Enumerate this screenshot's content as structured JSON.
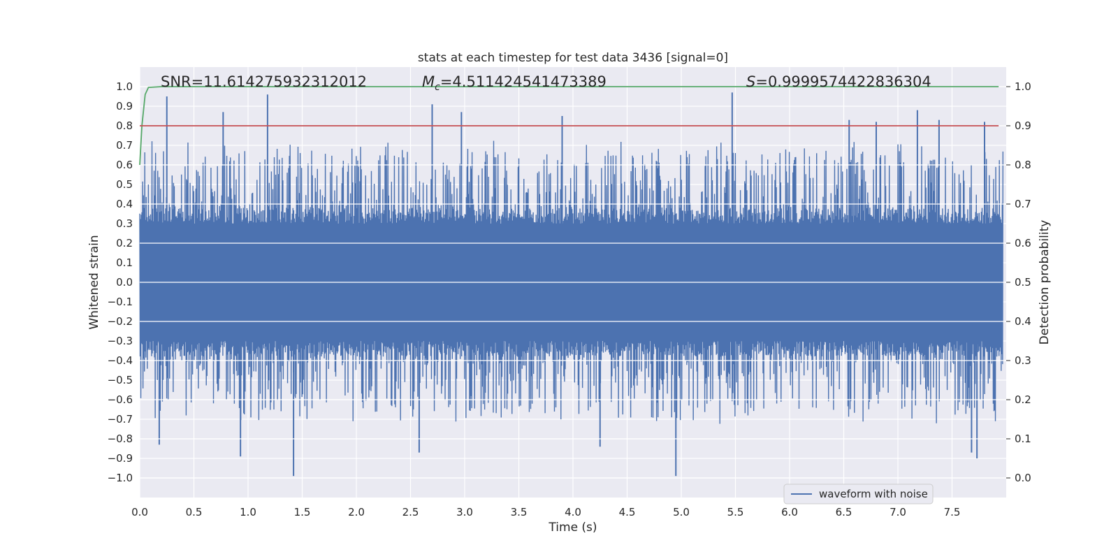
{
  "chart_data": {
    "type": "line",
    "title": "stats at each timestep for test data 3436 [signal=0]",
    "xlabel": "Time (s)",
    "ylabel_left": "Whitened strain",
    "ylabel_right": "Detection probability",
    "xlim": [
      0.0,
      8.0
    ],
    "ylim_left": [
      -1.1,
      1.1
    ],
    "ylim_right": [
      -0.05,
      1.05
    ],
    "x_ticks": [
      "0.0",
      "0.5",
      "1.0",
      "1.5",
      "2.0",
      "2.5",
      "3.0",
      "3.5",
      "4.0",
      "4.5",
      "5.0",
      "5.5",
      "6.0",
      "6.5",
      "7.0",
      "7.5"
    ],
    "y_ticks_left": [
      "1.0",
      "0.9",
      "0.8",
      "0.7",
      "0.6",
      "0.5",
      "0.4",
      "0.3",
      "0.2",
      "0.1",
      "0.0",
      "−0.1",
      "−0.2",
      "−0.3",
      "−0.4",
      "−0.5",
      "−0.6",
      "−0.7",
      "−0.8",
      "−0.9",
      "−1.0"
    ],
    "y_ticks_right": [
      "1.0",
      "0.9",
      "0.8",
      "0.7",
      "0.6",
      "0.5",
      "0.4",
      "0.3",
      "0.2",
      "0.1",
      "0.0"
    ],
    "annotations": {
      "snr": "SNR=11.614275932312012",
      "mc_symbol": "M",
      "mc_sub": "c",
      "mc_value": "=4.511424541473389",
      "s_symbol": "S",
      "s_value": "=0.9999574422836304"
    },
    "legend": {
      "label": "waveform with noise",
      "position": "lower-right"
    },
    "series": [
      {
        "name": "waveform with noise",
        "axis": "left",
        "color": "#4c72b0",
        "description": "dense noisy whitened strain, bulk within about ±0.3 with spikes up to ±1.0",
        "bulk_amplitude": 0.3,
        "spikes": [
          {
            "x": 0.25,
            "y": 0.95
          },
          {
            "x": 0.77,
            "y": 0.87
          },
          {
            "x": 1.18,
            "y": 0.96
          },
          {
            "x": 2.7,
            "y": 0.91
          },
          {
            "x": 2.97,
            "y": 0.87
          },
          {
            "x": 3.9,
            "y": 0.85
          },
          {
            "x": 5.47,
            "y": 0.97
          },
          {
            "x": 6.55,
            "y": 0.83
          },
          {
            "x": 6.8,
            "y": 0.82
          },
          {
            "x": 7.18,
            "y": 0.88
          },
          {
            "x": 7.38,
            "y": 0.83
          },
          {
            "x": 7.8,
            "y": 0.82
          },
          {
            "x": 0.93,
            "y": -0.89
          },
          {
            "x": 1.42,
            "y": -0.99
          },
          {
            "x": 2.58,
            "y": -0.87
          },
          {
            "x": 4.95,
            "y": -0.99
          },
          {
            "x": 4.25,
            "y": -0.84
          },
          {
            "x": 7.73,
            "y": -0.9
          },
          {
            "x": 7.68,
            "y": -0.87
          },
          {
            "x": 0.18,
            "y": -0.83
          }
        ]
      },
      {
        "name": "detection probability",
        "axis": "right",
        "color": "#55a868",
        "x": [
          0.0,
          0.02,
          0.05,
          0.08,
          0.2,
          7.93
        ],
        "y": [
          0.8,
          0.9,
          0.98,
          0.998,
          1.0,
          1.0
        ]
      },
      {
        "name": "threshold",
        "axis": "right",
        "color": "#c44e52",
        "x": [
          0.0,
          7.93
        ],
        "y": [
          0.9,
          0.9
        ]
      }
    ]
  }
}
